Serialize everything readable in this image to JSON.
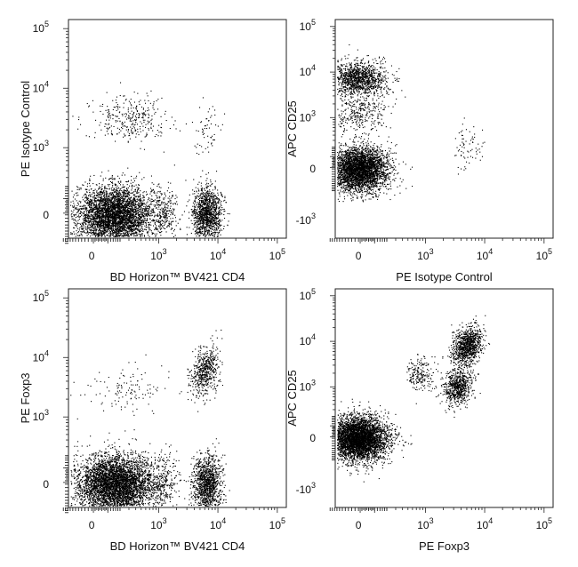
{
  "chart_data": [
    {
      "type": "scatter",
      "xlabel": "BD Horizon™ BV421 CD4",
      "ylabel": "PE Isotype Control",
      "x_scale": "biexponential",
      "y_scale": "biexponential",
      "x_ticks": [
        {
          "value": 0,
          "label": "0"
        },
        {
          "value": 1000,
          "label": "10",
          "exp": "3"
        },
        {
          "value": 10000,
          "label": "10",
          "exp": "4"
        },
        {
          "value": 100000,
          "label": "10",
          "exp": "5"
        }
      ],
      "y_ticks": [
        {
          "value": 0,
          "label": "0"
        },
        {
          "value": 1000,
          "label": "10",
          "exp": "3"
        },
        {
          "value": 10000,
          "label": "10",
          "exp": "4"
        },
        {
          "value": 100000,
          "label": "10",
          "exp": "5"
        }
      ],
      "populations": [
        {
          "x_center": 150,
          "y_center": 0,
          "count": 4200
        },
        {
          "x_center": 6500,
          "y_center": 0,
          "count": 1300
        },
        {
          "x_center": 1200,
          "y_center": 0,
          "count": 250
        },
        {
          "x_center": 300,
          "y_center": 3000,
          "count": 320
        },
        {
          "x_center": 6500,
          "y_center": 2000,
          "count": 60
        }
      ]
    },
    {
      "type": "scatter",
      "xlabel": "PE Isotype Control",
      "ylabel": "APC CD25",
      "x_scale": "biexponential",
      "y_scale": "biexponential",
      "x_ticks": [
        {
          "value": 0,
          "label": "0"
        },
        {
          "value": 1000,
          "label": "10",
          "exp": "3"
        },
        {
          "value": 10000,
          "label": "10",
          "exp": "4"
        },
        {
          "value": 100000,
          "label": "10",
          "exp": "5"
        }
      ],
      "y_ticks": [
        {
          "value": -1000,
          "label": "-10",
          "exp": "3"
        },
        {
          "value": 0,
          "label": "0"
        },
        {
          "value": 1000,
          "label": "10",
          "exp": "3"
        },
        {
          "value": 10000,
          "label": "10",
          "exp": "4"
        },
        {
          "value": 100000,
          "label": "10",
          "exp": "5"
        }
      ],
      "populations": [
        {
          "x_center": 0,
          "y_center": 0,
          "count": 3600
        },
        {
          "x_center": 0,
          "y_center": 7000,
          "count": 1300
        },
        {
          "x_center": 0,
          "y_center": 1200,
          "count": 300
        },
        {
          "x_center": 5000,
          "y_center": 200,
          "count": 70
        }
      ]
    },
    {
      "type": "scatter",
      "xlabel": "BD Horizon™ BV421 CD4",
      "ylabel": "PE  Foxp3",
      "x_scale": "biexponential",
      "y_scale": "biexponential",
      "x_ticks": [
        {
          "value": 0,
          "label": "0"
        },
        {
          "value": 1000,
          "label": "10",
          "exp": "3"
        },
        {
          "value": 10000,
          "label": "10",
          "exp": "4"
        },
        {
          "value": 100000,
          "label": "10",
          "exp": "5"
        }
      ],
      "y_ticks": [
        {
          "value": 0,
          "label": "0"
        },
        {
          "value": 1000,
          "label": "10",
          "exp": "3"
        },
        {
          "value": 10000,
          "label": "10",
          "exp": "4"
        },
        {
          "value": 100000,
          "label": "10",
          "exp": "5"
        }
      ],
      "populations": [
        {
          "x_center": 150,
          "y_center": 0,
          "count": 4600
        },
        {
          "x_center": 6500,
          "y_center": 0,
          "count": 1200
        },
        {
          "x_center": 6000,
          "y_center": 6000,
          "count": 550
        },
        {
          "x_center": 1200,
          "y_center": 0,
          "count": 250
        },
        {
          "x_center": 300,
          "y_center": 3000,
          "count": 120
        }
      ]
    },
    {
      "type": "scatter",
      "xlabel": "PE  Foxp3",
      "ylabel": "APC CD25",
      "x_scale": "biexponential",
      "y_scale": "biexponential",
      "x_ticks": [
        {
          "value": 0,
          "label": "0"
        },
        {
          "value": 1000,
          "label": "10",
          "exp": "3"
        },
        {
          "value": 10000,
          "label": "10",
          "exp": "4"
        },
        {
          "value": 100000,
          "label": "10",
          "exp": "5"
        }
      ],
      "y_ticks": [
        {
          "value": -1000,
          "label": "-10",
          "exp": "3"
        },
        {
          "value": 0,
          "label": "0"
        },
        {
          "value": 1000,
          "label": "10",
          "exp": "3"
        },
        {
          "value": 10000,
          "label": "10",
          "exp": "4"
        },
        {
          "value": 100000,
          "label": "10",
          "exp": "5"
        }
      ],
      "populations": [
        {
          "x_center": 0,
          "y_center": 0,
          "count": 4500
        },
        {
          "x_center": 5000,
          "y_center": 8000,
          "count": 1000
        },
        {
          "x_center": 3500,
          "y_center": 1000,
          "count": 700
        },
        {
          "x_center": 800,
          "y_center": 2000,
          "count": 200
        }
      ]
    }
  ]
}
